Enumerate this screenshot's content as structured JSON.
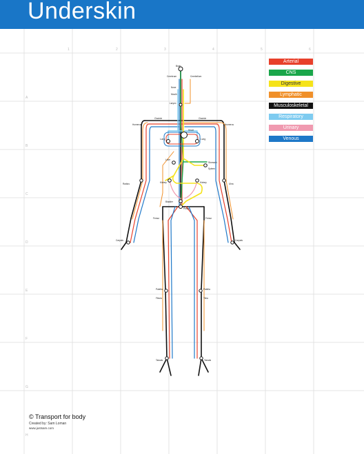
{
  "header": {
    "title": "Underskin",
    "color": "#1976c7"
  },
  "legend": {
    "items": [
      {
        "label": "Arterial",
        "color": "#e8402b"
      },
      {
        "label": "CNS",
        "color": "#1aa64a"
      },
      {
        "label": "Digestive",
        "color": "#f5e31a"
      },
      {
        "label": "Lymphatic",
        "color": "#f0902a"
      },
      {
        "label": "Musculoskeletal",
        "color": "#111111"
      },
      {
        "label": "Respiratory",
        "color": "#7ecbf0"
      },
      {
        "label": "Urinary",
        "color": "#f09ab0"
      },
      {
        "label": "Venous",
        "color": "#1e78c8"
      }
    ]
  },
  "grid": {
    "columns": [
      "1",
      "2",
      "3",
      "4",
      "5",
      "6"
    ],
    "rows": [
      "A",
      "B",
      "C",
      "D",
      "E",
      "F",
      "G",
      "H"
    ]
  },
  "map": {
    "stations": {
      "brain": "Brain",
      "cerebrum": "Cerebrum",
      "cerebellum": "Cerebellum",
      "nose": "Nose",
      "mouth": "Mouth",
      "larynx": "Larynx",
      "clavicle_l": "Clavicle",
      "clavicle_r": "Clavicle",
      "humerus_l": "Humerus",
      "humerus_r": "Humerus",
      "lung_l": "Lung",
      "lung_r": "Lung",
      "heart": "Heart",
      "liver": "Liver",
      "stomach": "Stomach",
      "spleen": "Spleen",
      "kidney_l": "Kidney",
      "kidney_r": "Kidney",
      "bladder": "Bladder",
      "pelvis": "Pelvis",
      "radius": "Radius",
      "ulna": "Ulna",
      "carpals_l": "Carpals",
      "carpals_r": "Carpals",
      "femur_l": "Femur",
      "femur_r": "Femur",
      "patella_l": "Patella",
      "patella_r": "Patella",
      "fibula": "Fibula",
      "tibia": "Tibia",
      "tarsals_l": "Tarsals",
      "tarsals_r": "Tarsals"
    }
  },
  "credit": {
    "main": "© Transport for body",
    "sub": "Created by: Sam Loman",
    "url": "www.justsam.com"
  }
}
